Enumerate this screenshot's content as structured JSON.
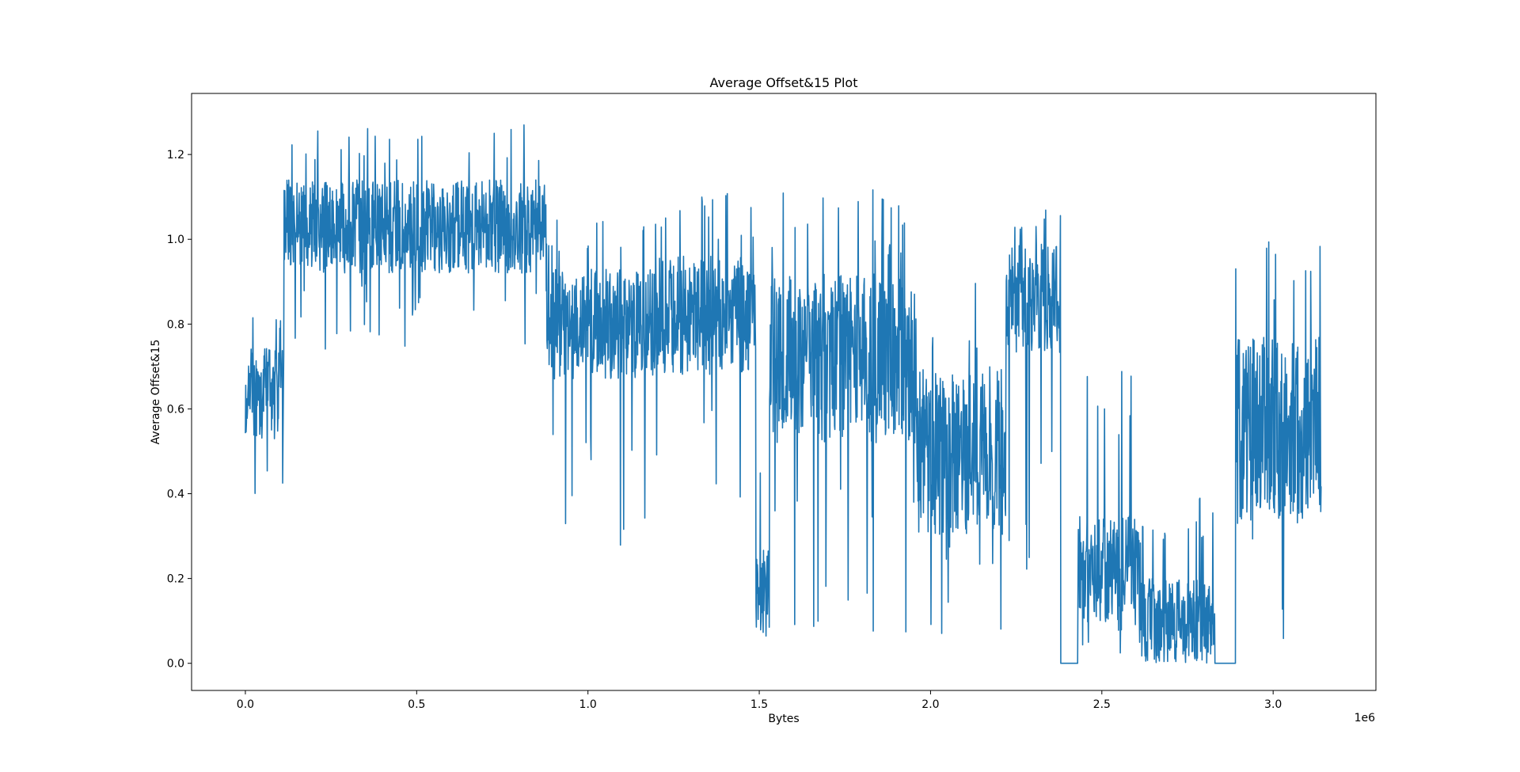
{
  "chart_data": {
    "type": "line",
    "title": "Average Offset&15 Plot",
    "xlabel": "Bytes",
    "ylabel": "Average Offset&15",
    "x_offset_label": "1e6",
    "xlim": [
      -0.157,
      3.3
    ],
    "ylim": [
      -0.064,
      1.344
    ],
    "grid": false,
    "legend": "none",
    "x_ticks": [
      0.0,
      0.5,
      1.0,
      1.5,
      2.0,
      2.5,
      3.0
    ],
    "x_tick_labels": [
      "0.0",
      "0.5",
      "1.0",
      "1.5",
      "2.0",
      "2.5",
      "3.0"
    ],
    "y_ticks": [
      0.0,
      0.2,
      0.4,
      0.6,
      0.8,
      1.0,
      1.2
    ],
    "y_tick_labels": [
      "0.0",
      "0.2",
      "0.4",
      "0.6",
      "0.8",
      "1.0",
      "1.2"
    ],
    "series": [
      {
        "color": "#1f77b4",
        "x_range": [
          0.0,
          3.14
        ],
        "segments": [
          {
            "x": [
              0.0,
              0.112
            ],
            "mean": 0.64,
            "amp": 0.11,
            "min": 0.38,
            "max": 0.88
          },
          {
            "x": [
              0.112,
              0.88
            ],
            "mean": 1.03,
            "amp": 0.11,
            "min": 0.74,
            "max": 1.27
          },
          {
            "x": [
              0.88,
              1.2
            ],
            "mean": 0.8,
            "amp": 0.13,
            "min": 0.19,
            "max": 1.07
          },
          {
            "x": [
              1.2,
              1.49
            ],
            "mean": 0.82,
            "amp": 0.14,
            "min": 0.33,
            "max": 1.12
          },
          {
            "x": [
              1.49,
              1.53
            ],
            "mean": 0.17,
            "amp": 0.1,
            "min": 0.02,
            "max": 0.52
          },
          {
            "x": [
              1.53,
              1.96
            ],
            "mean": 0.72,
            "amp": 0.2,
            "min": 0.06,
            "max": 1.12
          },
          {
            "x": [
              1.96,
              2.22
            ],
            "mean": 0.5,
            "amp": 0.2,
            "min": 0.0,
            "max": 0.9
          },
          {
            "x": [
              2.22,
              2.38
            ],
            "mean": 0.86,
            "amp": 0.13,
            "min": 0.22,
            "max": 1.08
          },
          {
            "x": [
              2.38,
              2.43
            ],
            "mean": 0.0,
            "amp": 0.0,
            "min": 0.0,
            "max": 0.0
          },
          {
            "x": [
              2.43,
              2.61
            ],
            "mean": 0.22,
            "amp": 0.13,
            "min": 0.0,
            "max": 0.73
          },
          {
            "x": [
              2.61,
              2.83
            ],
            "mean": 0.1,
            "amp": 0.1,
            "min": 0.0,
            "max": 0.39
          },
          {
            "x": [
              2.83,
              2.89
            ],
            "mean": 0.0,
            "amp": 0.0,
            "min": 0.0,
            "max": 0.0
          },
          {
            "x": [
              2.89,
              3.14
            ],
            "mean": 0.55,
            "amp": 0.22,
            "min": 0.0,
            "max": 1.05
          }
        ]
      }
    ]
  }
}
